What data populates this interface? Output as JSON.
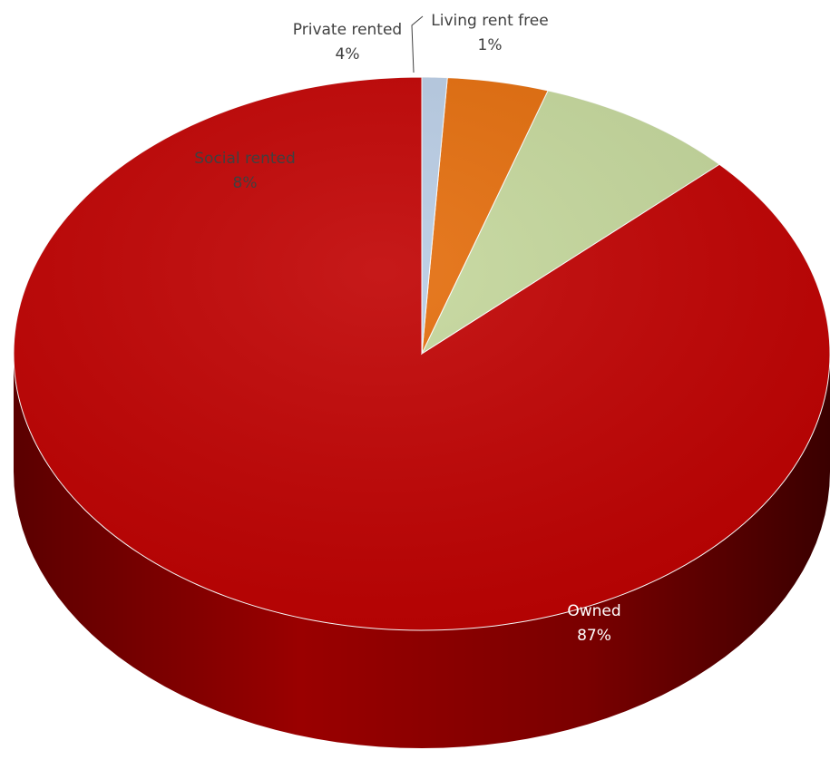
{
  "chart_data": {
    "type": "pie",
    "style": "3d",
    "start_angle": "top",
    "direction": "counterclockwise",
    "slices": [
      {
        "label": "Owned",
        "value": 87,
        "value_label": "87%",
        "color": "#c00000",
        "side_color": "#7a0000"
      },
      {
        "label": "Social rented",
        "value": 8,
        "value_label": "8%",
        "color": "#c4d79b",
        "side_color": "#8a9a60"
      },
      {
        "label": "Private rented",
        "value": 4,
        "value_label": "4%",
        "color": "#e46c0a",
        "side_color": "#9a4606"
      },
      {
        "label": "Living rent free",
        "value": 1,
        "value_label": "1%",
        "color": "#b8cce4",
        "side_color": "#7a8aa0"
      }
    ],
    "legend": "none"
  }
}
